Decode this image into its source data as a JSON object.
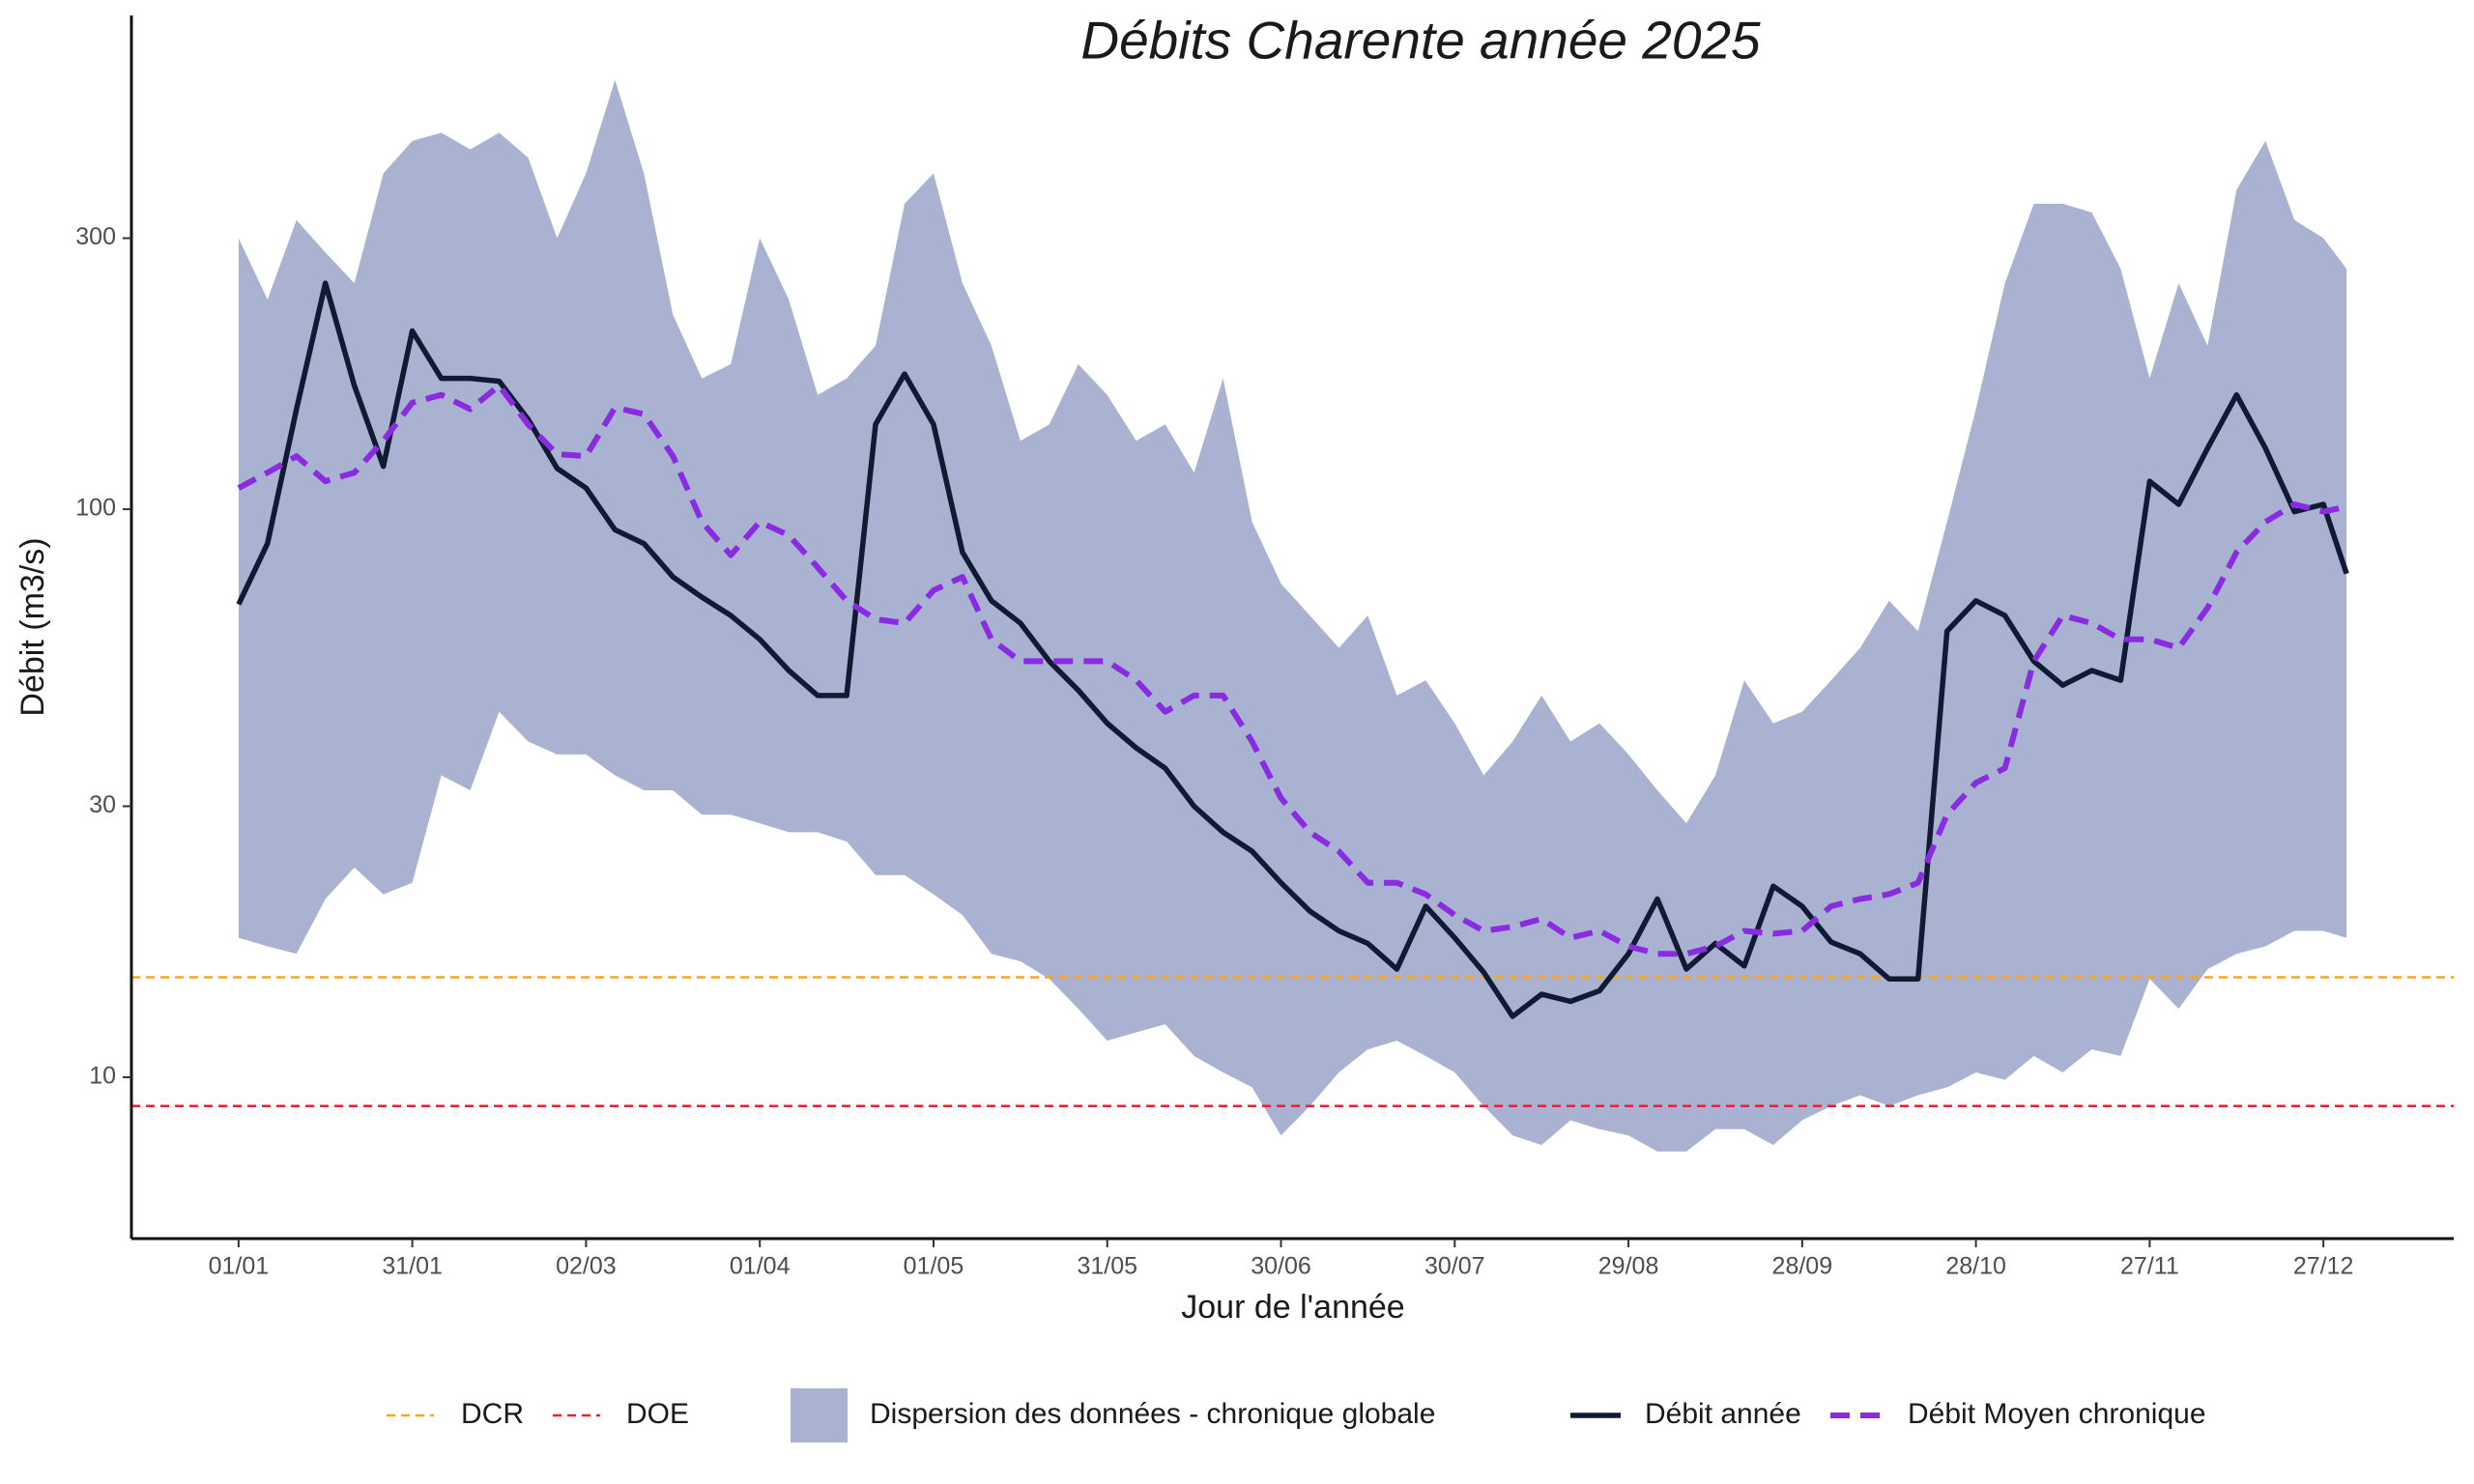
{
  "chart_data": {
    "type": "line",
    "title": "Débits Charente année 2025",
    "x_label": "Jour de l'année",
    "y_label": "Débit (m3/s)",
    "log_scale": "y",
    "xlim": [
      -17.5,
      383.5
    ],
    "ylim": [
      5.2,
      740
    ],
    "xticks": [
      {
        "value": 1,
        "label": "01/01"
      },
      {
        "value": 31,
        "label": "31/01"
      },
      {
        "value": 61,
        "label": "02/03"
      },
      {
        "value": 91,
        "label": "01/04"
      },
      {
        "value": 121,
        "label": "01/05"
      },
      {
        "value": 151,
        "label": "31/05"
      },
      {
        "value": 181,
        "label": "30/06"
      },
      {
        "value": 211,
        "label": "30/07"
      },
      {
        "value": 241,
        "label": "29/08"
      },
      {
        "value": 271,
        "label": "28/09"
      },
      {
        "value": 301,
        "label": "28/10"
      },
      {
        "value": 331,
        "label": "27/11"
      },
      {
        "value": 361,
        "label": "27/12"
      }
    ],
    "yticks": [
      10,
      30,
      100,
      300
    ],
    "reference_lines": [
      {
        "name": "DCR",
        "value": 15,
        "color": "#f5a623"
      },
      {
        "name": "DOE",
        "value": 8.9,
        "color": "#e8222e"
      }
    ],
    "x": [
      1,
      6,
      11,
      16,
      21,
      26,
      31,
      36,
      41,
      46,
      51,
      56,
      61,
      66,
      71,
      76,
      81,
      86,
      91,
      96,
      101,
      106,
      111,
      116,
      121,
      126,
      131,
      136,
      141,
      146,
      151,
      156,
      161,
      166,
      171,
      176,
      181,
      186,
      191,
      196,
      201,
      206,
      211,
      216,
      221,
      226,
      231,
      236,
      241,
      246,
      251,
      256,
      261,
      266,
      271,
      276,
      281,
      286,
      291,
      296,
      301,
      306,
      311,
      316,
      321,
      326,
      331,
      336,
      341,
      346,
      351,
      356,
      361,
      365
    ],
    "series": [
      {
        "name": "Dispersion des données - chronique globale",
        "color": "#a9b3d1",
        "low": [
          17.6,
          17,
          16.5,
          20.6,
          23.4,
          21,
          22,
          34,
          32,
          44,
          39,
          37,
          37,
          34,
          32,
          32,
          29,
          29,
          28,
          27,
          27,
          26,
          22.7,
          22.7,
          21,
          19.3,
          16.5,
          16,
          14.9,
          13.2,
          11.6,
          12,
          12.4,
          10.9,
          10.2,
          9.6,
          7.9,
          8.9,
          10.2,
          11.2,
          11.6,
          10.9,
          10.2,
          8.9,
          7.9,
          7.6,
          8.4,
          8.1,
          7.9,
          7.4,
          7.4,
          8.1,
          8.1,
          7.6,
          8.4,
          8.9,
          9.3,
          8.9,
          9.3,
          9.6,
          10.2,
          9.9,
          10.9,
          10.2,
          11.2,
          10.9,
          14.9,
          13.2,
          15.5,
          16.5,
          17,
          18.1,
          18.1,
          17.6
        ],
        "high": [
          300,
          234,
          323,
          283,
          250,
          390,
          445,
          460,
          430,
          460,
          416,
          300,
          390,
          570,
          390,
          220,
          170,
          180,
          300,
          234,
          159,
          170,
          194,
          345,
          390,
          250,
          194,
          132,
          141,
          180,
          159,
          132,
          141,
          116,
          170,
          95,
          74,
          65,
          57,
          65,
          47,
          50,
          42,
          34,
          39,
          47,
          39,
          42,
          37,
          32,
          28,
          34,
          50,
          42,
          44,
          50,
          57,
          69,
          61,
          95,
          150,
          250,
          345,
          345,
          333,
          265,
          170,
          250,
          194,
          365,
          445,
          323,
          300,
          265
        ]
      },
      {
        "name": "Débit année",
        "color": "#111a33",
        "values": [
          68,
          87,
          150,
          250,
          165,
          119,
          206,
          170,
          170,
          168,
          144,
          118,
          109,
          92,
          87,
          76,
          70,
          65,
          59,
          52,
          47,
          47,
          141,
          173,
          141,
          84,
          69,
          63,
          54,
          48,
          42,
          38,
          35,
          30,
          27,
          25,
          22,
          19.6,
          18.1,
          17.2,
          15.5,
          20,
          17.6,
          15.3,
          12.8,
          14,
          13.6,
          14.2,
          16.5,
          20.6,
          15.5,
          17.2,
          15.7,
          21.7,
          20,
          17.3,
          16.5,
          14.9,
          14.9,
          61,
          69,
          65,
          54,
          49,
          52,
          50,
          112,
          102,
          128,
          159,
          128,
          99,
          102,
          77
        ]
      },
      {
        "name": "Débit Moyen chronique",
        "color": "#8a2be2",
        "dashed": true,
        "values": [
          109,
          116,
          124,
          112,
          116,
          132,
          154,
          159,
          150,
          165,
          141,
          125,
          124,
          151,
          147,
          124,
          95,
          83,
          95,
          90,
          79,
          69,
          64,
          63,
          72,
          76,
          59,
          54,
          54,
          54,
          54,
          50,
          44,
          47,
          47,
          39,
          31,
          27,
          25,
          22,
          22,
          21,
          19.3,
          18.1,
          18.4,
          19,
          17.6,
          18.1,
          17,
          16.5,
          16.5,
          17,
          18.1,
          17.9,
          18.1,
          20,
          20.6,
          21,
          22,
          29,
          33,
          35,
          54,
          65,
          63,
          59,
          59,
          57,
          67,
          84,
          95,
          102,
          99,
          101
        ]
      }
    ]
  }
}
